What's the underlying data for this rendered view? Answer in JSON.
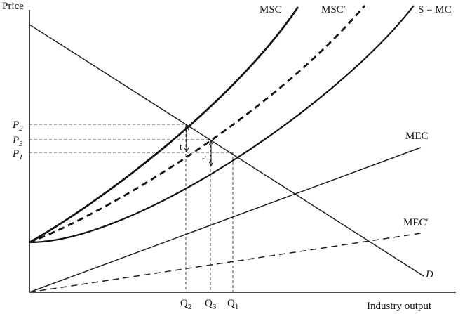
{
  "axes": {
    "y_label": "Price",
    "x_label": "Industry output"
  },
  "curves": {
    "msc": "MSC",
    "msc_prime": "MSC′",
    "supply": "S = MC",
    "mec": "MEC",
    "mec_prime": "MEC′",
    "demand": "D"
  },
  "price_levels": [
    {
      "base": "P",
      "sub": "2"
    },
    {
      "base": "P",
      "sub": "3"
    },
    {
      "base": "P",
      "sub": "1"
    }
  ],
  "quantity_levels": [
    {
      "base": "Q",
      "sub": "2"
    },
    {
      "base": "Q",
      "sub": "3"
    },
    {
      "base": "Q",
      "sub": "1"
    }
  ],
  "tax_labels": [
    "t",
    "t′"
  ]
}
